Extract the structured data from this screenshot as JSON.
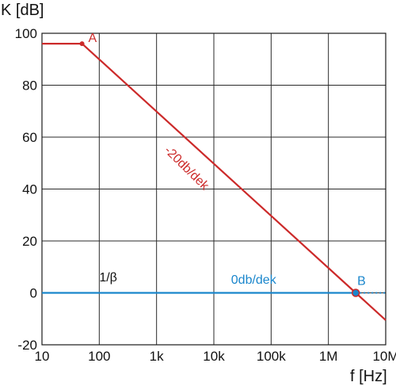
{
  "chart_data": {
    "type": "line",
    "title": "",
    "xlabel": "f [Hz]",
    "ylabel": "K [dB]",
    "x_scale": "log",
    "xlim": [
      10,
      10000000
    ],
    "ylim": [
      -20,
      100
    ],
    "x_ticks": [
      {
        "value": 10,
        "label": "10"
      },
      {
        "value": 100,
        "label": "100"
      },
      {
        "value": 1000,
        "label": "1k"
      },
      {
        "value": 10000,
        "label": "10k"
      },
      {
        "value": 100000,
        "label": "100k"
      },
      {
        "value": 1000000,
        "label": "1M"
      },
      {
        "value": 10000000,
        "label": "10M"
      }
    ],
    "y_ticks": [
      {
        "value": 100,
        "label": "100"
      },
      {
        "value": 80,
        "label": "80"
      },
      {
        "value": 60,
        "label": "60"
      },
      {
        "value": 40,
        "label": "40"
      },
      {
        "value": 20,
        "label": "20"
      },
      {
        "value": 0,
        "label": "0"
      },
      {
        "value": -20,
        "label": "-20"
      }
    ],
    "grid": true,
    "series": [
      {
        "color": "#cc2a2a",
        "x": [
          10,
          50,
          3000000,
          10000000
        ],
        "y": [
          96,
          96,
          0,
          -10.5
        ]
      },
      {
        "color": "#1a86cc",
        "x": [
          10,
          3000000
        ],
        "y": [
          0,
          0
        ]
      },
      {
        "color": "#1a86cc",
        "style": "dotted",
        "x": [
          3000000,
          10000000
        ],
        "y": [
          0,
          0
        ]
      }
    ],
    "points": [
      {
        "label": "A",
        "x": 50,
        "y": 96,
        "color": "#cc2a2a"
      },
      {
        "label": "B",
        "x": 3000000,
        "y": 0,
        "color": "#1a86cc"
      }
    ],
    "annotations": [
      {
        "text": "-20db/dek",
        "color": "#cc2a2a",
        "x": 3000,
        "y": 47
      },
      {
        "text": "0db/dek",
        "color": "#1a86cc",
        "x": 20000,
        "y": 3.5
      },
      {
        "text": "1/β",
        "color": "#111111",
        "x": 100,
        "y": 4.5
      }
    ]
  }
}
